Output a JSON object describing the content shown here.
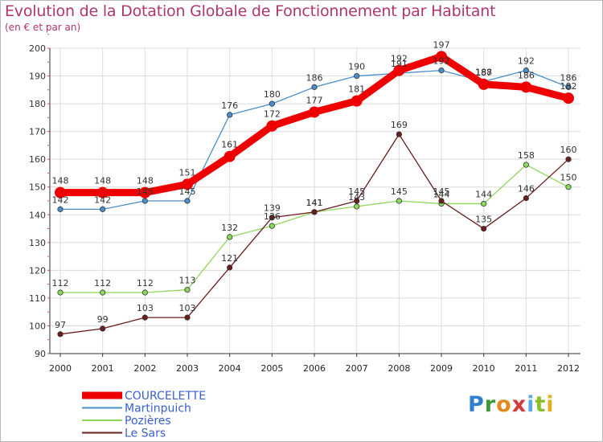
{
  "title": "Evolution de la Dotation Globale de Fonctionnement par Habitant",
  "subtitle": "(en € et par an)",
  "logo": {
    "text": "Proxiti",
    "letters": [
      "P",
      "r",
      "o",
      "x",
      "i",
      "t",
      "i"
    ]
  },
  "colors": {
    "title": "#b0356f",
    "grid": "#dcdcdc",
    "axis": "#333333",
    "tick_marks": "#e05050"
  },
  "chart_data": {
    "type": "line",
    "title": "Evolution de la Dotation Globale de Fonctionnement par Habitant",
    "subtitle": "(en € et par an)",
    "xlabel": "",
    "ylabel": "",
    "x": [
      "2000",
      "2001",
      "2002",
      "2003",
      "2004",
      "2005",
      "2006",
      "2007",
      "2008",
      "2009",
      "2010",
      "2011",
      "2012"
    ],
    "ylim": [
      90,
      200
    ],
    "yticks": [
      90,
      100,
      110,
      120,
      130,
      140,
      150,
      160,
      170,
      180,
      190,
      200
    ],
    "grid": true,
    "legend_position": "bottom-left",
    "series": [
      {
        "name": "COURCELETTE",
        "color": "#ee0000",
        "emphasis": true,
        "values": [
          148,
          148,
          148,
          151,
          161,
          172,
          177,
          181,
          192,
          197,
          187,
          186,
          182
        ]
      },
      {
        "name": "Martinpuich",
        "color": "#4a8fcc",
        "emphasis": false,
        "values": [
          142,
          142,
          145,
          145,
          176,
          180,
          186,
          190,
          191,
          192,
          188,
          192,
          186
        ]
      },
      {
        "name": "Pozières",
        "color": "#8ed85a",
        "emphasis": false,
        "values": [
          112,
          112,
          112,
          113,
          132,
          136,
          141,
          143,
          145,
          144,
          144,
          158,
          150
        ]
      },
      {
        "name": "Le Sars",
        "color": "#6b1c1c",
        "emphasis": false,
        "values": [
          97,
          99,
          103,
          103,
          121,
          139,
          141,
          145,
          169,
          145,
          135,
          146,
          160
        ]
      }
    ]
  }
}
